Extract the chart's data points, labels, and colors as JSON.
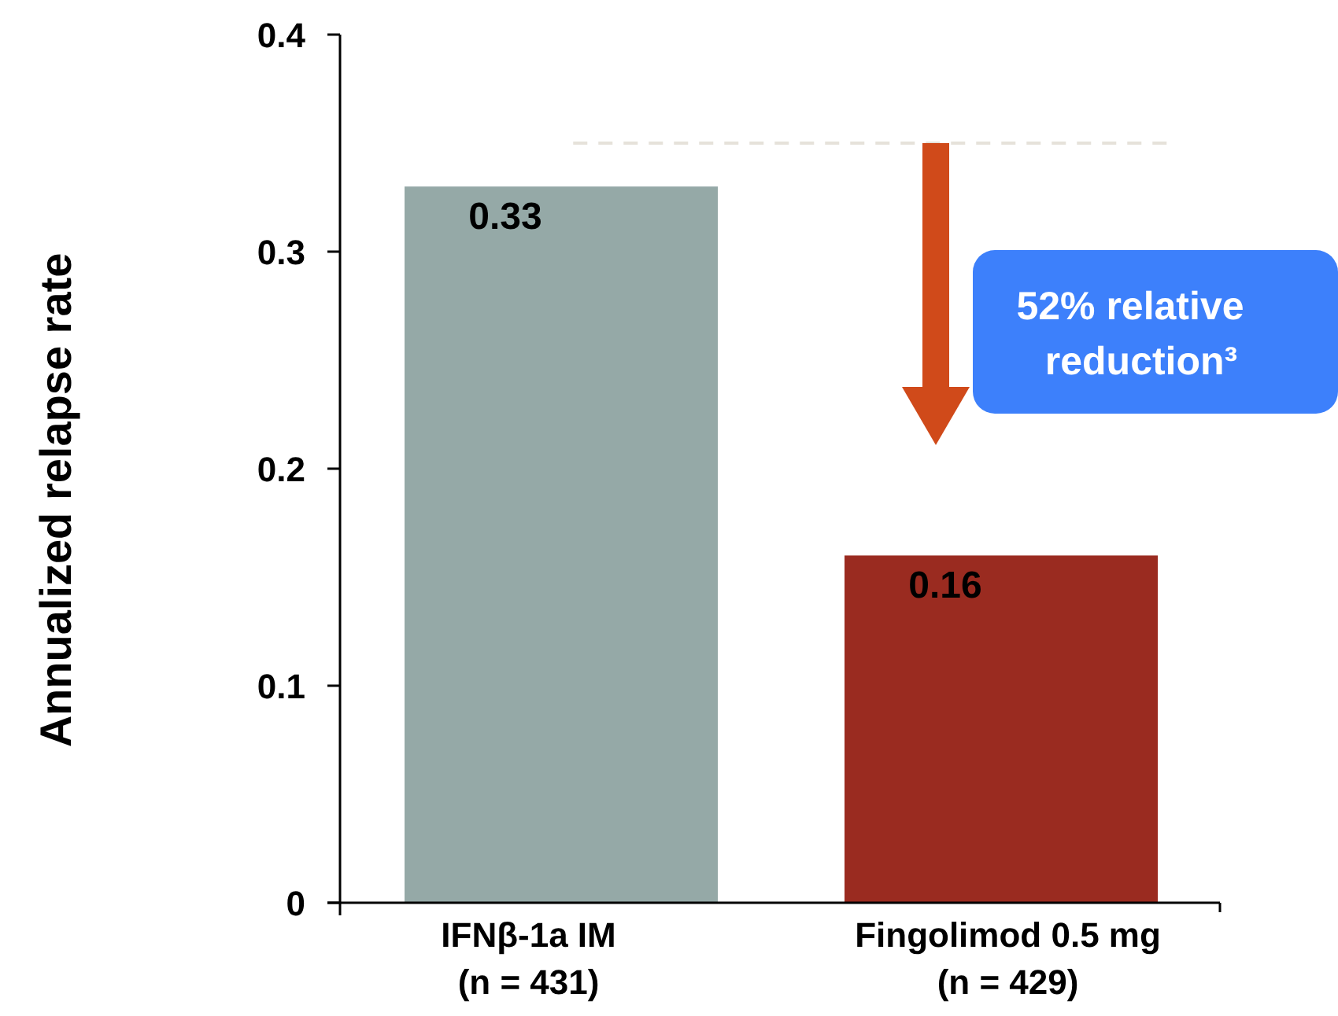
{
  "chart_data": {
    "type": "bar",
    "ylabel": "Annualized relapse rate",
    "categories": [
      "IFNβ-1a IM\n(n = 431)",
      "Fingolimod 0.5 mg\n(n = 429)"
    ],
    "values": [
      0.33,
      0.16
    ],
    "colors": [
      "#95a9a7",
      "#9a2b20"
    ],
    "data_labels": true,
    "ylim": [
      0,
      0.4
    ],
    "yticks": [
      {
        "value": 0,
        "label": "0"
      },
      0.1,
      0.2,
      0.3,
      0.4
    ],
    "grid": false,
    "ref_lines": [
      {
        "axis": "y",
        "value": 0.35,
        "label": null,
        "color": "#e6e2da",
        "line_style": "dashed"
      }
    ],
    "annotations": [
      "52% relative reduction³"
    ]
  }
}
